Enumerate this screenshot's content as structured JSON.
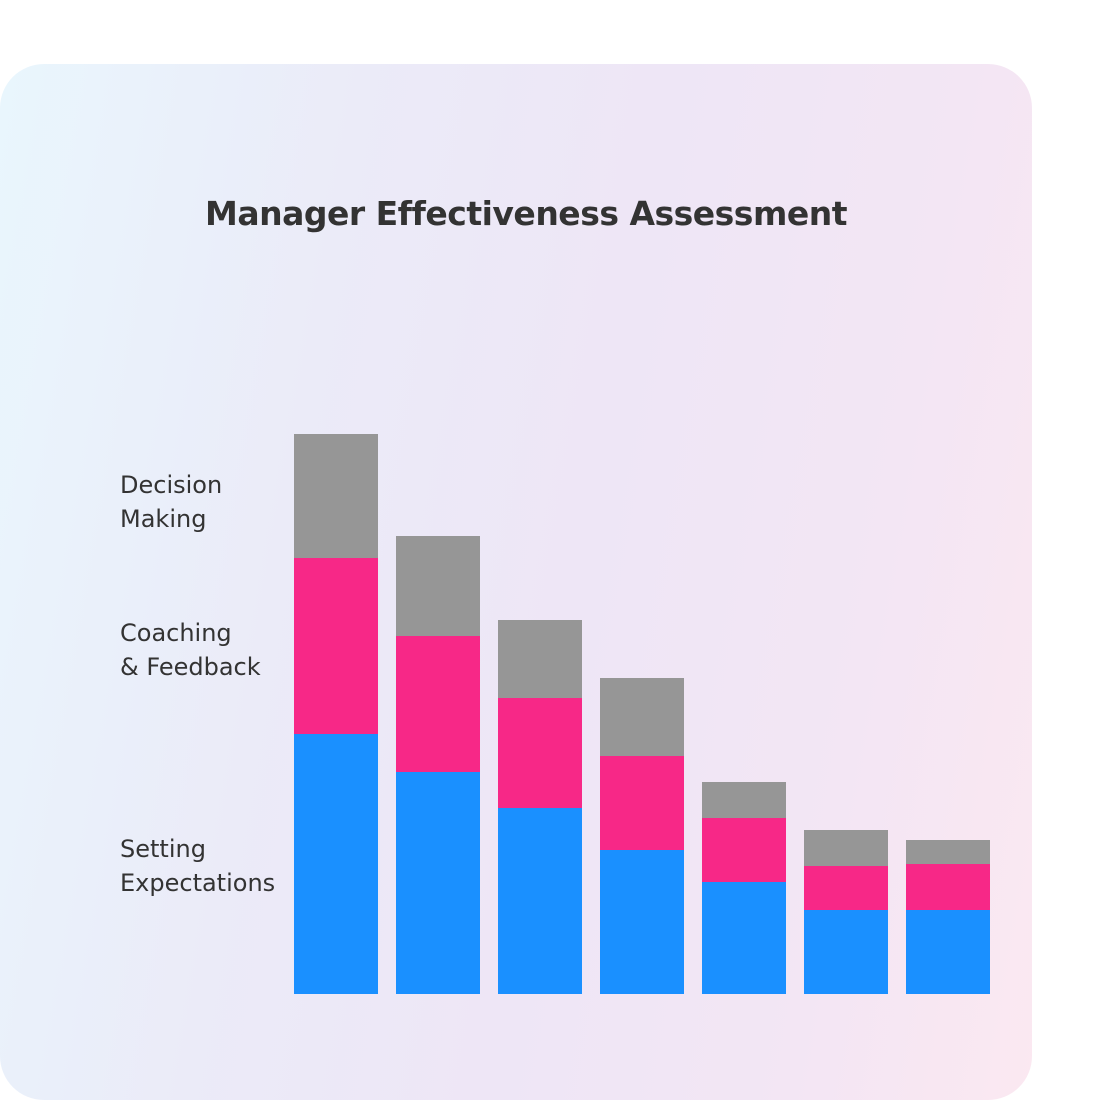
{
  "chart_data": {
    "type": "bar",
    "stacked": true,
    "title": "Manager Effectiveness Assessment",
    "categories": [
      "",
      "",
      "",
      "",
      "",
      "",
      ""
    ],
    "series": [
      {
        "name": "Setting\nExpectations",
        "color": "#1a90ff",
        "values": [
          65,
          55.5,
          46.5,
          36,
          28,
          21,
          21
        ]
      },
      {
        "name": "Coaching\n& Feedback",
        "color": "#f72887",
        "values": [
          44,
          34,
          27.5,
          23.5,
          16,
          11,
          11.5
        ]
      },
      {
        "name": "Decision\nMaking",
        "color": "#969696",
        "values": [
          31,
          25,
          19.5,
          19.5,
          9,
          9,
          6
        ]
      }
    ],
    "xlabel": "",
    "ylabel": "",
    "grid": false,
    "axes_visible": false,
    "legend": "left, labels aligned with first bar segments"
  }
}
